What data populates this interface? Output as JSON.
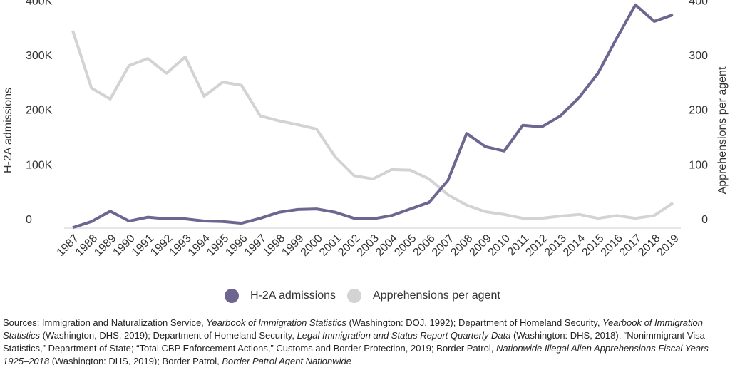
{
  "chart_data": {
    "type": "line",
    "x": [
      1987,
      1988,
      1989,
      1990,
      1991,
      1992,
      1993,
      1994,
      1995,
      1996,
      1997,
      1998,
      1999,
      2000,
      2001,
      2002,
      2003,
      2004,
      2005,
      2006,
      2007,
      2008,
      2009,
      2010,
      2011,
      2012,
      2013,
      2014,
      2015,
      2016,
      2017,
      2018,
      2019
    ],
    "series": [
      {
        "name": "H-2A admissions",
        "color": "#6e6691",
        "values": [
          1000,
          12000,
          31000,
          13000,
          20000,
          17000,
          17000,
          13000,
          12000,
          9000,
          18000,
          29000,
          34000,
          35000,
          29000,
          18000,
          17000,
          23000,
          35000,
          47000,
          87000,
          173000,
          149000,
          141000,
          188000,
          185000,
          205000,
          239000,
          283000,
          347000,
          408000,
          378000,
          390000
        ]
      },
      {
        "name": "Apprehensions per agent",
        "color": "#d3d3d3",
        "axis": "y2",
        "values": [
          361,
          256,
          236,
          297,
          310,
          283,
          313,
          241,
          267,
          261,
          205,
          196,
          189,
          181,
          130,
          96,
          90,
          107,
          106,
          90,
          61,
          42,
          30,
          25,
          18,
          18,
          22,
          25,
          18,
          23,
          18,
          23,
          46
        ]
      }
    ],
    "ylabel": "H-2A admissions",
    "y2label": "Apprehensions per agent",
    "ylim": [
      0,
      417000
    ],
    "yticks": [
      0,
      {
        "value": 100000,
        "label": "100K"
      },
      {
        "value": 200000,
        "label": "200K"
      },
      {
        "value": 300000,
        "label": "300K"
      },
      {
        "value": 400000,
        "label": "400K"
      }
    ],
    "y2lim": [
      0,
      417
    ],
    "y2ticks": [
      0,
      100,
      200,
      300,
      400
    ],
    "grid": false,
    "legend": "bottom",
    "source": [
      "Sources: Immigration and Naturalization Service, ",
      "Yearbook of Immigration Statistics",
      " (Washington: DOJ, 1992); Department of Homeland Security, ",
      "Yearbook of Immigration Statistics",
      " (Washington, DHS, 2019); Department of Homeland Security, ",
      "Legal Immigration and Status Report Quarterly Data",
      " (Washington: DHS, 2018); “Nonimmigrant Visa Statistics,” Department of State; “Total CBP Enforcement Actions,” Customs and Border Protection, 2019; Border Patrol, ",
      "Nationwide Illegal Alien Apprehensions Fiscal Years 1925–2018",
      " (Washington: DHS, 2019); Border Patrol, ",
      "Border Patrol Agent Nationwide"
    ]
  }
}
